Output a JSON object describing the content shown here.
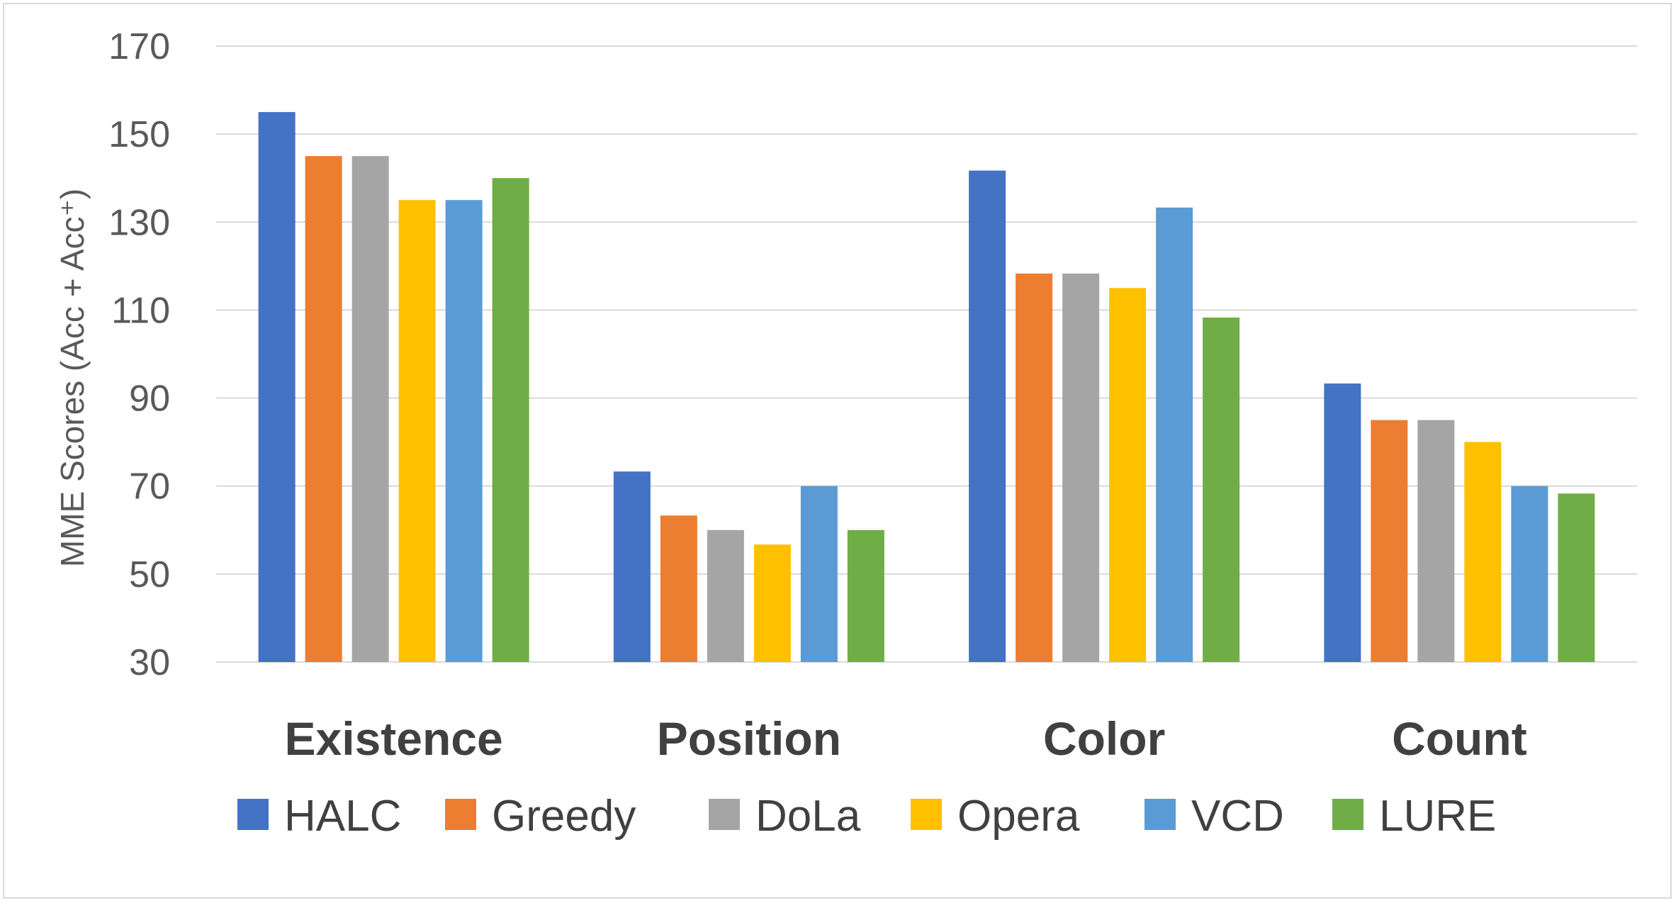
{
  "chart_data": {
    "type": "bar",
    "categories": [
      "Existence",
      "Position",
      "Color",
      "Count"
    ],
    "series": [
      {
        "name": "HALC",
        "color": "#4472C4",
        "values": [
          155,
          73.3,
          141.7,
          93.3
        ]
      },
      {
        "name": "Greedy",
        "color": "#ED7D31",
        "values": [
          145,
          63.3,
          118.3,
          85
        ]
      },
      {
        "name": "DoLa",
        "color": "#A5A5A5",
        "values": [
          145,
          60,
          118.3,
          85
        ]
      },
      {
        "name": "Opera",
        "color": "#FFC000",
        "values": [
          135,
          56.7,
          115,
          80
        ]
      },
      {
        "name": "VCD",
        "color": "#5B9BD5",
        "values": [
          135,
          70,
          133.3,
          70
        ]
      },
      {
        "name": "LURE",
        "color": "#70AD47",
        "values": [
          140,
          60,
          108.3,
          68.3
        ]
      }
    ],
    "ylabel": "MME Scores  (Acc + Acc⁺)",
    "ylim": [
      30,
      170
    ],
    "yticks": [
      30,
      50,
      70,
      90,
      110,
      130,
      150,
      170
    ],
    "grid": true,
    "legend": "bottom"
  }
}
